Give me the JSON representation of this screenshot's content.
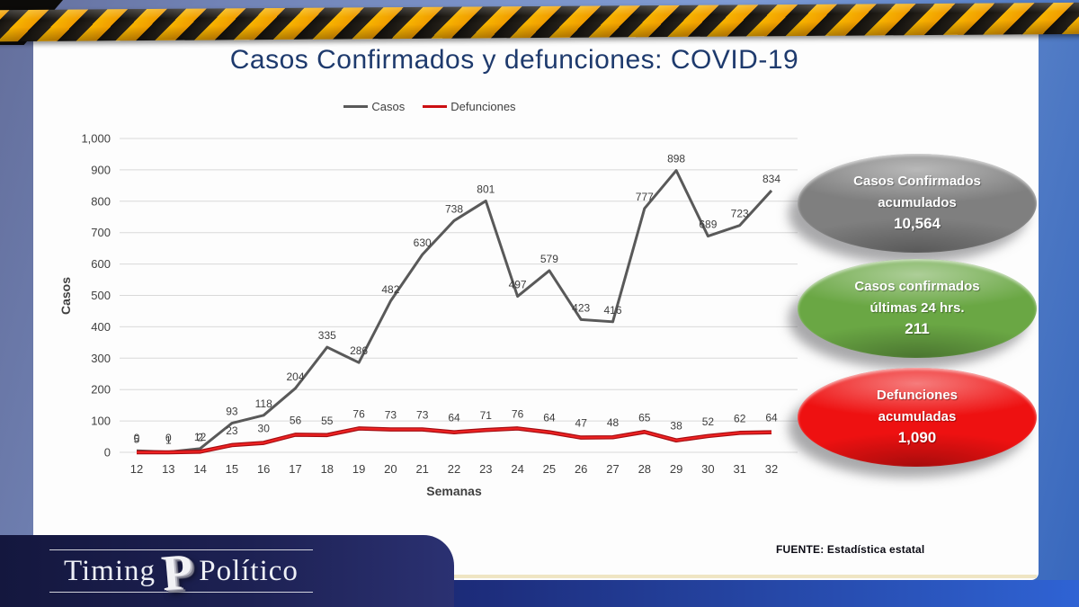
{
  "chart_data": {
    "type": "line",
    "title": "Casos Confirmados y defunciones: COVID-19",
    "xlabel": "Semanas",
    "ylabel": "Casos",
    "ylim": [
      0,
      1000
    ],
    "ytick_step": 100,
    "grid": "horizontal",
    "legend_position": "top-center",
    "x": [
      12,
      13,
      14,
      15,
      16,
      17,
      18,
      19,
      20,
      21,
      22,
      23,
      24,
      25,
      26,
      27,
      28,
      29,
      30,
      31,
      32
    ],
    "series": [
      {
        "name": "Casos",
        "color": "#595959",
        "values": [
          5,
          1,
          12,
          93,
          118,
          204,
          335,
          286,
          482,
          630,
          738,
          801,
          497,
          579,
          423,
          416,
          777,
          898,
          689,
          723,
          834
        ]
      },
      {
        "name": "Defunciones",
        "color": "#cc0f12",
        "values": [
          0,
          0,
          2,
          23,
          30,
          56,
          55,
          76,
          73,
          73,
          64,
          71,
          76,
          64,
          47,
          48,
          65,
          38,
          52,
          62,
          64
        ]
      }
    ]
  },
  "badges": [
    {
      "label": "Casos Confirmados\nacumulados",
      "value": "10,564",
      "color": "#7f7f7f"
    },
    {
      "label": "Casos confirmados\núltimas 24 hrs.",
      "value": "211",
      "color": "#6aa744"
    },
    {
      "label": "Defunciones\nacumuladas",
      "value": "1,090",
      "color": "#ee1111"
    }
  ],
  "footer": {
    "source": "FUENTE: Estadística estatal"
  },
  "logo": {
    "word1": "Timing",
    "word2": "Político",
    "monogram": "P"
  }
}
